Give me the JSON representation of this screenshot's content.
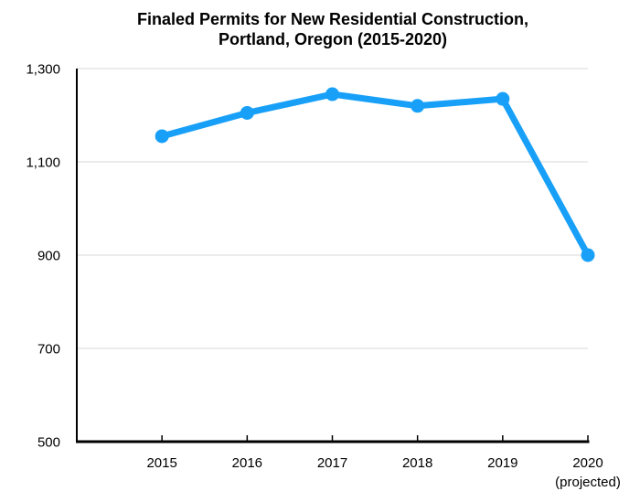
{
  "title": {
    "line1": "Finaled Permits for New Residential Construction,",
    "line2": "Portland, Oregon (2015-2020)"
  },
  "chart_data": {
    "type": "line",
    "title": "Finaled Permits for New Residential Construction, Portland, Oregon (2015-2020)",
    "categories": [
      "2015",
      "2016",
      "2017",
      "2018",
      "2019",
      "2020"
    ],
    "x_sublabels": [
      "",
      "",
      "",
      "",
      "",
      "(projected)"
    ],
    "values": [
      1155,
      1205,
      1245,
      1220,
      1235,
      900
    ],
    "ylim": [
      500,
      1300
    ],
    "yticks": [
      {
        "label": "1,300",
        "value": 1300
      },
      {
        "label": "1,100",
        "value": 1100
      },
      {
        "label": "900",
        "value": 900
      },
      {
        "label": "700",
        "value": 700
      },
      {
        "label": "500",
        "value": 500
      }
    ],
    "grid": true,
    "legend": "none",
    "line_color": "#18A0F8",
    "marker": "circle",
    "grid_color": "#D8D8D8",
    "axis_color": "#000000",
    "label_color": "#000000"
  }
}
